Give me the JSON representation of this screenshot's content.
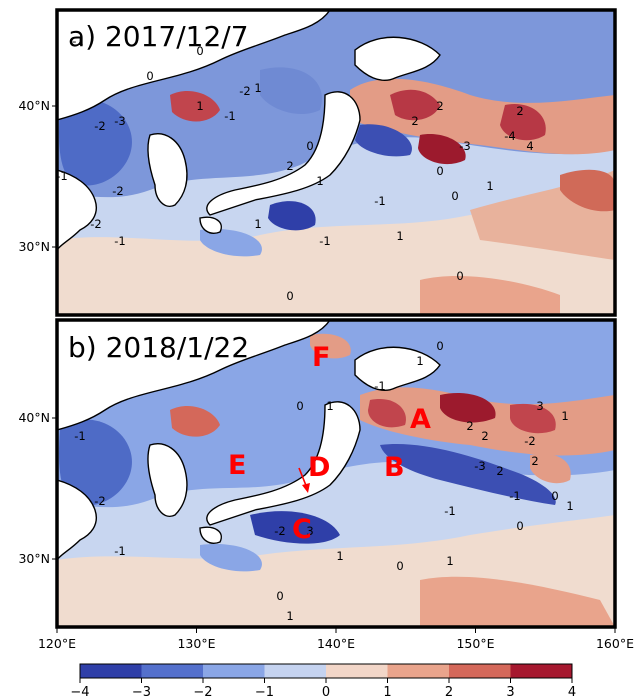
{
  "panels": [
    {
      "title": "a) 2017/12/7",
      "contour_labels": [
        "-1",
        "-2",
        "-3",
        "0",
        "1",
        "2",
        "-1",
        "-2",
        "0",
        "1",
        "-1",
        "-2",
        "0",
        "1",
        "2",
        "-3",
        "-4",
        "0",
        "1",
        "2",
        "0",
        "-1",
        "0",
        "1",
        "-1",
        "0",
        "-1",
        "-2",
        "1",
        "2",
        "4"
      ]
    },
    {
      "title": "b) 2018/1/22",
      "contour_labels": [
        "-1",
        "-2",
        "0",
        "1",
        "2",
        "-1",
        "0",
        "1",
        "2",
        "-2",
        "3",
        "0",
        "-1",
        "1",
        "2",
        "-3",
        "0",
        "1",
        "-1",
        "2",
        "0",
        "1",
        "-1",
        "0",
        "1",
        "3",
        "-2",
        "1"
      ],
      "markers": [
        "A",
        "B",
        "C",
        "D",
        "E",
        "F"
      ]
    }
  ],
  "latitude_ticks": [
    "40°N",
    "30°N"
  ],
  "longitude_ticks": [
    "120°E",
    "130°E",
    "140°E",
    "150°E",
    "160°E"
  ],
  "colorbar": {
    "ticks": [
      "−4",
      "−3",
      "−2",
      "−1",
      "0",
      "1",
      "2",
      "3",
      "4"
    ],
    "colors": [
      "#2f3fa8",
      "#5470cc",
      "#8aa6e6",
      "#c5d3f0",
      "#f2d6c8",
      "#e9a48c",
      "#d4685a",
      "#a6182f"
    ]
  },
  "colors": {
    "land": "#ffffff",
    "frame": "#000000",
    "marker": "#ff0000",
    "pos_strong": "#a6182f",
    "neg_strong": "#2f3fa8"
  }
}
